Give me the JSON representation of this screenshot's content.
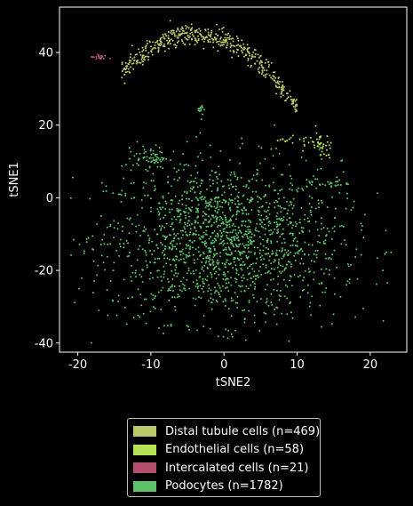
{
  "chart_data": {
    "type": "scatter",
    "xlabel": "tSNE2",
    "ylabel": "tSNE1",
    "xlim": [
      -22.5,
      25
    ],
    "ylim": [
      -42.5,
      52.5
    ],
    "xticks": [
      -20,
      -10,
      0,
      10,
      20
    ],
    "yticks": [
      -40,
      -20,
      0,
      20,
      40
    ],
    "legend_position": "below",
    "series": [
      {
        "name": "Distal tubule cells (n=469)",
        "color": "#bcc96a",
        "count": 469,
        "clusters": [
          {
            "shape": "arc",
            "x_range": [
              -14,
              10
            ],
            "peak_y": 45,
            "end_y": 30,
            "width": 4
          }
        ]
      },
      {
        "name": "Endothelial cells (n=58)",
        "color": "#b4e155",
        "count": 58,
        "clusters": [
          {
            "cx": 12,
            "cy": 15.5,
            "sx": 1.5,
            "sy": 1.2,
            "n": 30
          },
          {
            "cx": 8,
            "cy": 16,
            "sx": 0.6,
            "sy": 0.3,
            "n": 8
          },
          {
            "cx": 13.5,
            "cy": 13,
            "sx": 0.6,
            "sy": 1.2,
            "n": 20
          }
        ]
      },
      {
        "name": "Intercalated cells (n=21)",
        "color": "#b4506e",
        "count": 21,
        "clusters": [
          {
            "cx": -17,
            "cy": 38.7,
            "sx": 0.6,
            "sy": 0.4,
            "n": 21
          }
        ]
      },
      {
        "name": "Podocytes (n=1782)",
        "color": "#5cc36b",
        "count": 1782,
        "clusters": [
          {
            "cx": 0,
            "cy": -12,
            "sx": 8,
            "sy": 11,
            "n": 1600
          },
          {
            "cx": -10,
            "cy": 11,
            "sx": 1.2,
            "sy": 1.5,
            "n": 60
          },
          {
            "cx": 15,
            "cy": 4,
            "sx": 1.0,
            "sy": 0.8,
            "n": 20
          },
          {
            "cx": -3,
            "cy": 24,
            "sx": 0.2,
            "sy": 1.0,
            "n": 12
          },
          {
            "cx": 0,
            "cy": -12,
            "sx": 13,
            "sy": 12,
            "n": 90
          }
        ]
      }
    ]
  }
}
